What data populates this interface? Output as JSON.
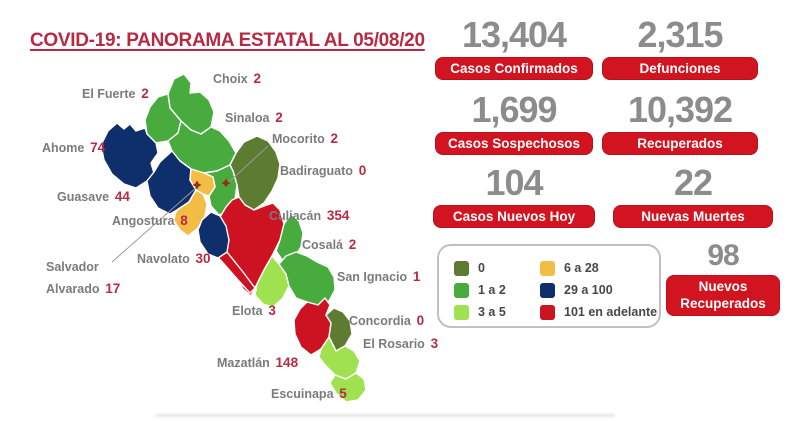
{
  "title": "COVID-19: PANORAMA ESTATAL AL 05/08/20",
  "date_shown": "05/08/20",
  "colors": {
    "title_red": "#b62b43",
    "pill_red": "#d21420",
    "stat_number_gray": "#8c8c8c",
    "map_label_gray": "#7b7b7b",
    "map_number_red": "#b62b43",
    "legend_border_gray": "#c0c0c0",
    "leader_line_gray": "#9a9a9a",
    "marker_red": "#9c2d12",
    "categories": {
      "0": "#5e7c31",
      "1 a 2": "#47ab3d",
      "3 a 5": "#9fe14e",
      "6 a 28": "#f3bd45",
      "29 a 100": "#0f2e6c",
      "101 en adelante": "#cd1222"
    }
  },
  "stats": [
    {
      "value": "13,404",
      "label": "Casos Confirmados"
    },
    {
      "value": "2,315",
      "label": "Defunciones"
    },
    {
      "value": "1,699",
      "label": "Casos Sospechosos"
    },
    {
      "value": "10,392",
      "label": "Recuperados"
    },
    {
      "value": "104",
      "label": "Casos Nuevos Hoy"
    },
    {
      "value": "22",
      "label": "Nuevas Muertes"
    },
    {
      "value": "98",
      "label": "Nuevos Recuperados"
    }
  ],
  "legend": [
    {
      "label": "0",
      "color": "#5e7c31"
    },
    {
      "label": "1 a 2",
      "color": "#47ab3d"
    },
    {
      "label": "3 a 5",
      "color": "#9fe14e"
    },
    {
      "label": "6 a 28",
      "color": "#f3bd45"
    },
    {
      "label": "29 a 100",
      "color": "#0f2e6c"
    },
    {
      "label": "101 en adelante",
      "color": "#cd1222"
    }
  ],
  "map": {
    "state": "Sinaloa",
    "municipalities": [
      {
        "name": "Choix",
        "cases": "2",
        "category": "1 a 2"
      },
      {
        "name": "El Fuerte",
        "cases": "2",
        "category": "1 a 2"
      },
      {
        "name": "Sinaloa",
        "cases": "2",
        "category": "1 a 2"
      },
      {
        "name": "Ahome",
        "cases": "74",
        "category": "29 a 100"
      },
      {
        "name": "Guasave",
        "cases": "44",
        "category": "29 a 100"
      },
      {
        "name": "Badiraguato",
        "cases": "0",
        "category": "0"
      },
      {
        "name": "Mocorito",
        "cases": "2",
        "category": "1 a 2"
      },
      {
        "name": "Angostura",
        "cases": "8",
        "category": "6 a 28"
      },
      {
        "name": "Salvador Alvarado",
        "cases": "17",
        "category": "6 a 28"
      },
      {
        "name": "Culiacán",
        "cases": "354",
        "category": "101 en adelante"
      },
      {
        "name": "Navolato",
        "cases": "30",
        "category": "29 a 100"
      },
      {
        "name": "Cosalá",
        "cases": "2",
        "category": "1 a 2"
      },
      {
        "name": "Elota",
        "cases": "3",
        "category": "3 a 5"
      },
      {
        "name": "San Ignacio",
        "cases": "1",
        "category": "1 a 2"
      },
      {
        "name": "Mazatlán",
        "cases": "148",
        "category": "101 en adelante"
      },
      {
        "name": "Concordia",
        "cases": "0",
        "category": "0"
      },
      {
        "name": "El Rosario",
        "cases": "3",
        "category": "3 a 5"
      },
      {
        "name": "Escuinapa",
        "cases": "5",
        "category": "3 a 5"
      }
    ]
  }
}
